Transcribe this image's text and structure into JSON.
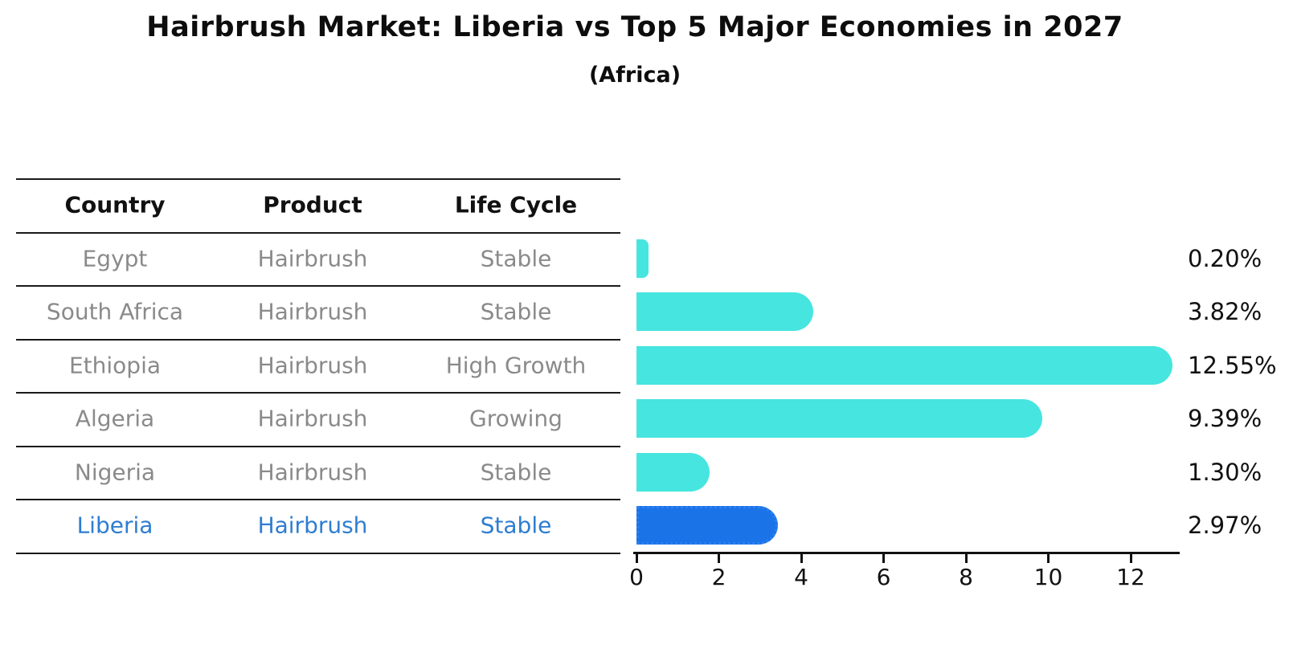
{
  "title": "Hairbrush Market: Liberia vs Top 5 Major Economies in 2027",
  "subtitle": "(Africa)",
  "table": {
    "headers": [
      "Country",
      "Product",
      "Life Cycle"
    ],
    "rows": [
      {
        "country": "Egypt",
        "product": "Hairbrush",
        "life_cycle": "Stable",
        "highlight": false
      },
      {
        "country": "South Africa",
        "product": "Hairbrush",
        "life_cycle": "Stable",
        "highlight": false
      },
      {
        "country": "Ethiopia",
        "product": "Hairbrush",
        "life_cycle": "High Growth",
        "highlight": false
      },
      {
        "country": "Algeria",
        "product": "Hairbrush",
        "life_cycle": "Growing",
        "highlight": false
      },
      {
        "country": "Nigeria",
        "product": "Hairbrush",
        "life_cycle": "Stable",
        "highlight": false
      },
      {
        "country": "Liberia",
        "product": "Hairbrush",
        "life_cycle": "Stable",
        "highlight": true
      }
    ]
  },
  "chart_data": {
    "type": "bar",
    "orientation": "horizontal",
    "title": "Hairbrush Market: Liberia vs Top 5 Major Economies in 2027",
    "subtitle": "(Africa)",
    "categories": [
      "Egypt",
      "South Africa",
      "Ethiopia",
      "Algeria",
      "Nigeria",
      "Liberia"
    ],
    "values": [
      0.2,
      3.82,
      12.55,
      9.39,
      1.3,
      2.97
    ],
    "value_labels": [
      "0.20%",
      "3.82%",
      "12.55%",
      "9.39%",
      "1.30%",
      "2.97%"
    ],
    "highlight_index": 5,
    "xlim": [
      0,
      13.2
    ],
    "xticks": [
      0,
      2,
      4,
      6,
      8,
      10,
      12
    ],
    "xtick_labels": [
      "0",
      "2",
      "4",
      "6",
      "8",
      "10",
      "12"
    ],
    "grid": false,
    "legend": false
  },
  "colors": {
    "bar": "#46E5E0",
    "highlight_bar": "#1B73E8",
    "highlight_bar_edge": "#2C80F0",
    "row_text": "#8A8A8A",
    "highlight_text": "#2E7DD1",
    "line": "#1a1a1a",
    "label_text": "#111111"
  }
}
